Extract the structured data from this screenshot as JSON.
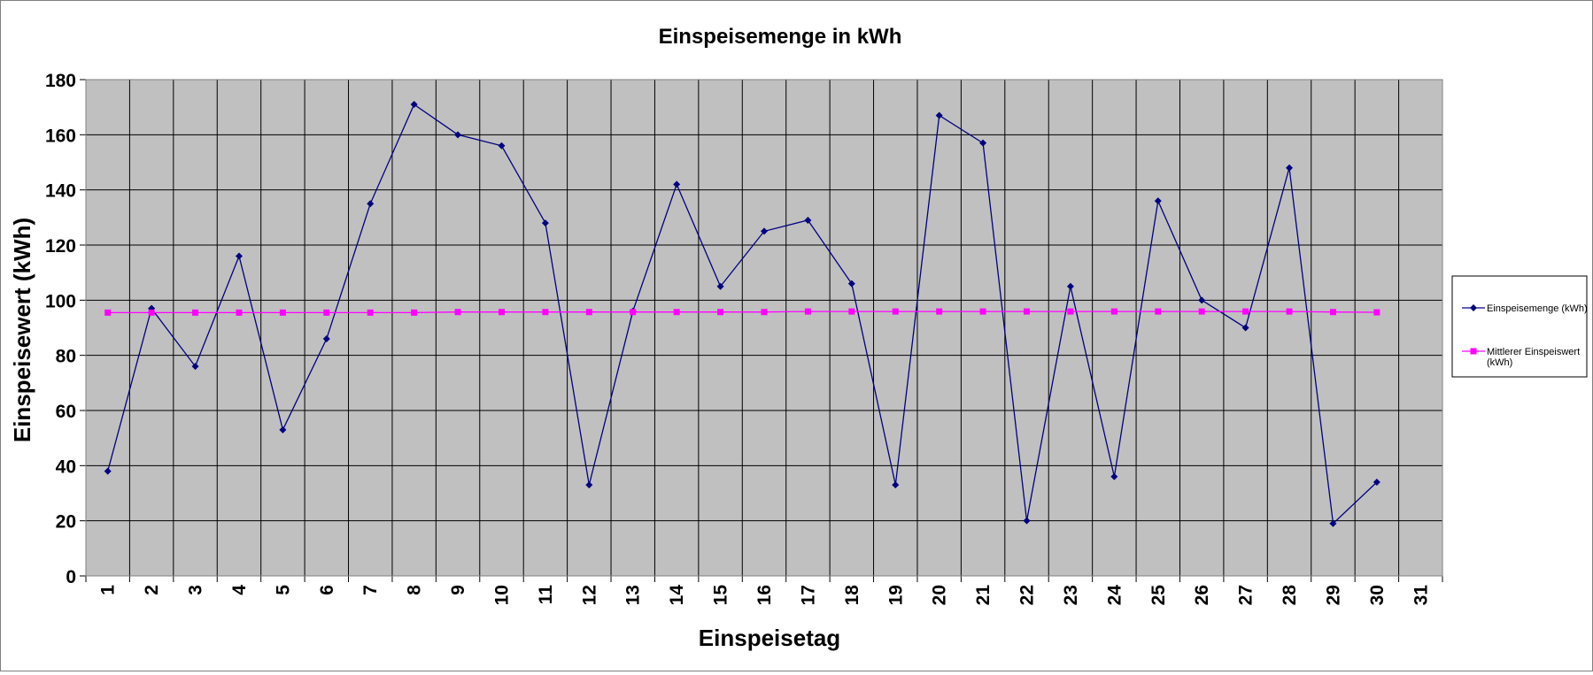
{
  "chart_data": {
    "type": "line",
    "title": "Einspeisemenge in kWh",
    "xlabel": "Einspeisetag",
    "ylabel": "Einspeisewert  (kWh)",
    "categories": [
      "1",
      "2",
      "3",
      "4",
      "5",
      "6",
      "7",
      "8",
      "9",
      "10",
      "11",
      "12",
      "13",
      "14",
      "15",
      "16",
      "17",
      "18",
      "19",
      "20",
      "21",
      "22",
      "23",
      "24",
      "25",
      "26",
      "27",
      "28",
      "29",
      "30",
      "31"
    ],
    "ylim": [
      0,
      180
    ],
    "yticks": [
      0,
      20,
      40,
      60,
      80,
      100,
      120,
      140,
      160,
      180
    ],
    "grid": true,
    "plot_background": "#c0c0c0",
    "legend_position": "right",
    "series": [
      {
        "name": "Einspeisemenge (kWh)",
        "color": "#000080",
        "marker": "diamond",
        "values": [
          38,
          97,
          76,
          116,
          53,
          86,
          135,
          171,
          160,
          156,
          128,
          33,
          96,
          142,
          105,
          125,
          129,
          106,
          33,
          167,
          157,
          20,
          105,
          36,
          136,
          100,
          90,
          148,
          19,
          34,
          null
        ]
      },
      {
        "name": "Mittlerer Einspeiswert (kWh)",
        "color": "#ff00ff",
        "marker": "square",
        "values": [
          95.5,
          95.5,
          95.5,
          95.5,
          95.5,
          95.5,
          95.5,
          95.5,
          95.7,
          95.7,
          95.7,
          95.7,
          95.7,
          95.7,
          95.7,
          95.7,
          95.9,
          95.9,
          95.9,
          95.9,
          95.9,
          95.9,
          95.9,
          95.9,
          95.9,
          95.9,
          95.9,
          95.9,
          95.7,
          95.6,
          null
        ]
      }
    ]
  }
}
